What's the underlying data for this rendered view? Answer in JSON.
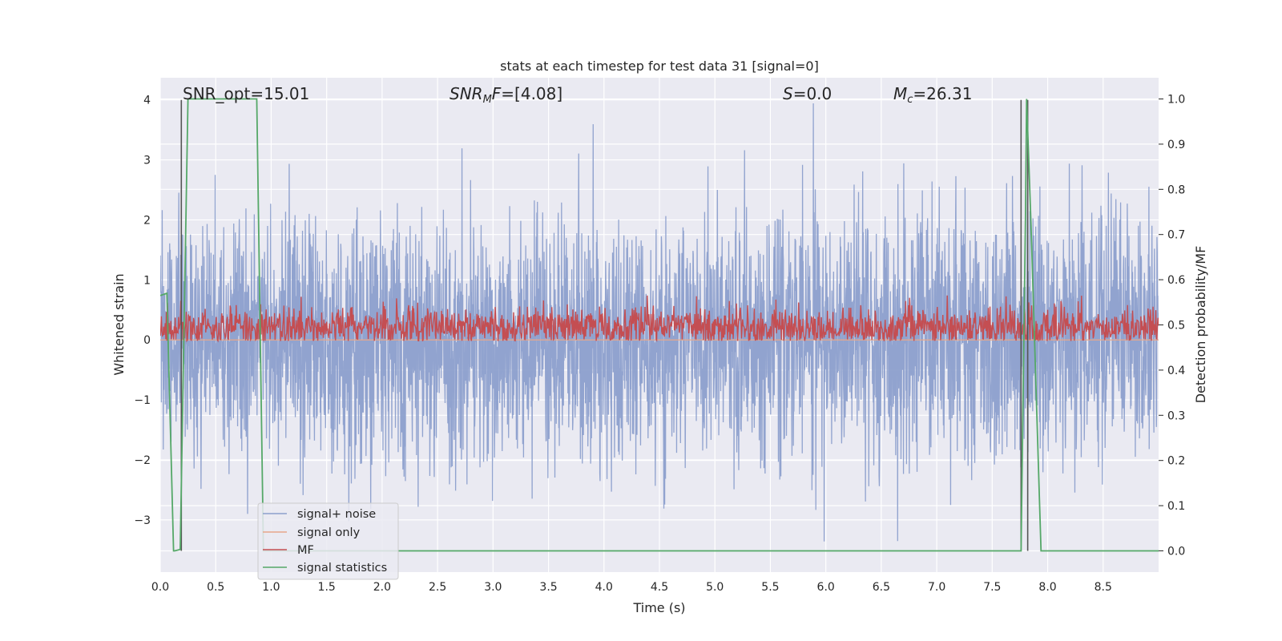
{
  "chart_data": {
    "type": "line",
    "title": "stats at each timestep for test data 31 [signal=0]",
    "xlabel": "Time (s)",
    "ylabel_left": "Whitened strain",
    "ylabel_right": "Detection probability/MF",
    "xlim": [
      0.0,
      9.0
    ],
    "ylim_left": [
      -3.87,
      4.37
    ],
    "ylim_right": [
      -0.047,
      1.047
    ],
    "x_ticks": [
      "0.0",
      "0.5",
      "1.0",
      "1.5",
      "2.0",
      "2.5",
      "3.0",
      "3.5",
      "4.0",
      "4.5",
      "5.0",
      "5.5",
      "6.0",
      "6.5",
      "7.0",
      "7.5",
      "8.0",
      "8.5"
    ],
    "y_left_ticks": [
      "4",
      "3",
      "2",
      "1",
      "0",
      "−1",
      "−2",
      "−3"
    ],
    "y_right_ticks": [
      "1.0",
      "0.9",
      "0.8",
      "0.7",
      "0.6",
      "0.5",
      "0.4",
      "0.3",
      "0.2",
      "0.1",
      "0.0"
    ],
    "grid": true,
    "legend_position": "lower-left",
    "annotations": [
      {
        "prefix": "SNR_opt=",
        "value": "15.01"
      },
      {
        "prefix": "SNR",
        "sub": "M",
        "suffix": "F=",
        "value": "[4.08]"
      },
      {
        "prefix": "S",
        "value": "=0.0"
      },
      {
        "prefix": "M",
        "sub": "c",
        "value": "=26.31"
      }
    ],
    "vertical_lines_x": [
      0.19,
      7.76,
      7.82
    ],
    "series": [
      {
        "name": "signal+ noise",
        "color": "#8c9fcc",
        "axis": "left",
        "kind": "noise",
        "amplitude_std": 1.0
      },
      {
        "name": "signal only",
        "color": "#e8a68a",
        "axis": "left",
        "kind": "flat",
        "values": [
          0.0
        ]
      },
      {
        "name": "MF",
        "color": "#c44e52",
        "axis": "left",
        "kind": "noise",
        "mean": 0.22,
        "amplitude_std": 0.17
      },
      {
        "name": "signal statistics",
        "color": "#55a868",
        "axis": "right",
        "x": [
          0.0,
          0.06,
          0.12,
          0.13,
          0.18,
          0.25,
          0.87,
          0.93,
          7.76,
          7.8,
          7.81,
          7.85,
          7.94,
          9.0
        ],
        "values": [
          0.565,
          0.57,
          0.0,
          0.0,
          0.003,
          1.0,
          1.0,
          0.0,
          0.0,
          0.74,
          1.0,
          0.72,
          0.0,
          0.0
        ]
      }
    ]
  }
}
